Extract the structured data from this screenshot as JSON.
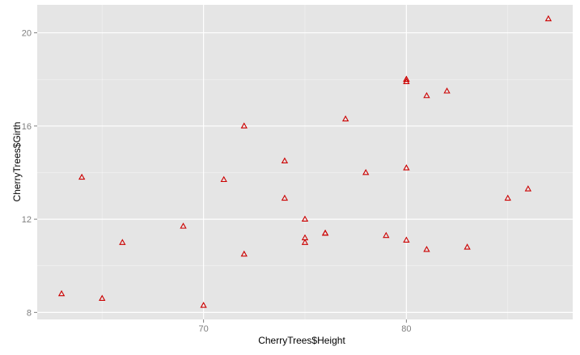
{
  "chart_data": {
    "type": "scatter",
    "title": "",
    "xlabel": "CherryTrees$Height",
    "ylabel": "CherryTrees$Girth",
    "xlim": [
      61.8,
      88.2
    ],
    "ylim": [
      7.7,
      21.2
    ],
    "x_major_ticks": [
      70,
      80
    ],
    "x_minor_ticks": [
      65,
      75,
      85
    ],
    "y_major_ticks": [
      8,
      12,
      16,
      20
    ],
    "y_minor_ticks": [
      10,
      14,
      18
    ],
    "x_tick_labels": [
      "70",
      "80"
    ],
    "y_tick_labels": [
      "8",
      "12",
      "16",
      "20"
    ],
    "grid": true,
    "marker": "open-triangle",
    "colors": {
      "panel": "#e5e5e5",
      "grid": "#ffffff",
      "point": "#cc0000",
      "tick_label": "#7f7f7f",
      "tick": "#7f7f7f"
    },
    "points": [
      {
        "x": 70,
        "y": 8.3
      },
      {
        "x": 65,
        "y": 8.6
      },
      {
        "x": 63,
        "y": 8.8
      },
      {
        "x": 72,
        "y": 10.5
      },
      {
        "x": 81,
        "y": 10.7
      },
      {
        "x": 83,
        "y": 10.8
      },
      {
        "x": 66,
        "y": 11.0
      },
      {
        "x": 75,
        "y": 11.0
      },
      {
        "x": 80,
        "y": 11.1
      },
      {
        "x": 75,
        "y": 11.2
      },
      {
        "x": 79,
        "y": 11.3
      },
      {
        "x": 76,
        "y": 11.4
      },
      {
        "x": 76,
        "y": 11.4
      },
      {
        "x": 69,
        "y": 11.7
      },
      {
        "x": 75,
        "y": 12.0
      },
      {
        "x": 74,
        "y": 12.9
      },
      {
        "x": 85,
        "y": 12.9
      },
      {
        "x": 86,
        "y": 13.3
      },
      {
        "x": 71,
        "y": 13.7
      },
      {
        "x": 64,
        "y": 13.8
      },
      {
        "x": 78,
        "y": 14.0
      },
      {
        "x": 80,
        "y": 14.2
      },
      {
        "x": 74,
        "y": 14.5
      },
      {
        "x": 72,
        "y": 16.0
      },
      {
        "x": 77,
        "y": 16.3
      },
      {
        "x": 81,
        "y": 17.3
      },
      {
        "x": 82,
        "y": 17.5
      },
      {
        "x": 80,
        "y": 17.9
      },
      {
        "x": 80,
        "y": 18.0
      },
      {
        "x": 80,
        "y": 18.0
      },
      {
        "x": 87,
        "y": 20.6
      }
    ]
  }
}
